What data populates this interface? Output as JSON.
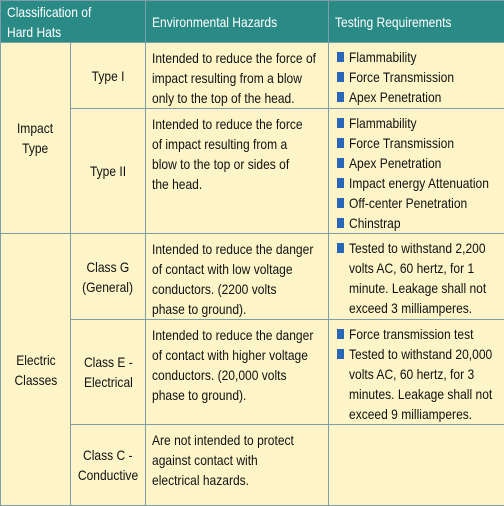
{
  "header": {
    "classification": [
      "Classification of",
      "Hard Hats"
    ],
    "hazards": [
      "Environmental Hazards"
    ],
    "testing": [
      "Testing Requirements"
    ]
  },
  "groups": [
    {
      "label": [
        "Impact",
        "Type"
      ],
      "rows": [
        {
          "name": [
            "Type I"
          ],
          "hazard": [
            "Intended to reduce the force of",
            "impact resulting from a blow",
            "only to the top of the head."
          ],
          "requirements": [
            [
              "Flammability"
            ],
            [
              "Force Transmission"
            ],
            [
              "Apex Penetration"
            ]
          ]
        },
        {
          "name": [
            "Type II"
          ],
          "hazard": [
            "Intended to reduce the force",
            "of impact resulting from a",
            "blow to the top or sides of",
            "the head."
          ],
          "requirements": [
            [
              "Flammability"
            ],
            [
              "Force Transmission"
            ],
            [
              "Apex Penetration"
            ],
            [
              "Impact energy Attenuation"
            ],
            [
              "Off-center Penetration"
            ],
            [
              "Chinstrap"
            ]
          ]
        }
      ]
    },
    {
      "label": [
        "Electric",
        "Classes"
      ],
      "rows": [
        {
          "name": [
            "Class G",
            "(General)"
          ],
          "hazard": [
            "Intended to reduce the danger",
            "of contact with low voltage",
            "conductors. (2200 volts",
            "phase to ground)."
          ],
          "requirements": [
            [
              "Tested to withstand 2,200",
              "volts AC, 60 hertz, for 1",
              "minute. Leakage shall not",
              "exceed 3 milliamperes."
            ]
          ]
        },
        {
          "name": [
            "Class E -",
            "Electrical"
          ],
          "hazard": [
            "Intended to reduce the danger",
            "of contact with higher voltage",
            "conductors. (20,000 volts",
            "phase to ground)."
          ],
          "requirements": [
            [
              "Force transmission test"
            ],
            [
              "Tested to withstand 20,000",
              "volts AC, 60 hertz, for 3",
              "minutes. Leakage shall not",
              "exceed 9 milliamperes."
            ]
          ]
        },
        {
          "name": [
            "Class C -",
            "Conductive"
          ],
          "hazard": [
            "Are not intended to protect",
            "against contact with",
            "electrical hazards."
          ],
          "requirements": []
        }
      ]
    }
  ]
}
